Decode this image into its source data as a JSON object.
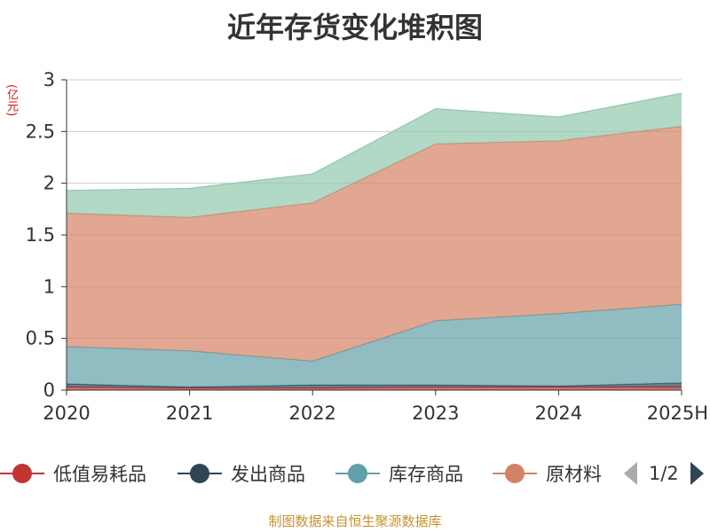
{
  "title": "近年存货变化堆积图",
  "y_unit": "(亿元)",
  "source_note": "制图数据来自恒生聚源数据库",
  "legend": {
    "page": "1/2",
    "items": [
      {
        "label": "低值易耗品",
        "color": "#c23531"
      },
      {
        "label": "发出商品",
        "color": "#2f4554"
      },
      {
        "label": "库存商品",
        "color": "#61a0a8"
      },
      {
        "label": "原材料",
        "color": "#d48265"
      }
    ]
  },
  "chart_data": {
    "type": "area",
    "stacked": true,
    "x": [
      "2020",
      "2021",
      "2022",
      "2023",
      "2024",
      "2025H"
    ],
    "ylim": [
      0,
      3
    ],
    "yticks": [
      "0",
      "0.5",
      "1",
      "1.5",
      "2",
      "2.5",
      "3"
    ],
    "grid": "horizontal",
    "legend_position": "bottom",
    "series": [
      {
        "name": "低值易耗品",
        "color": "#c23531",
        "values": [
          0.03,
          0.02,
          0.02,
          0.03,
          0.03,
          0.03
        ]
      },
      {
        "name": "发出商品",
        "color": "#2f4554",
        "values": [
          0.03,
          0.01,
          0.03,
          0.02,
          0.01,
          0.04
        ]
      },
      {
        "name": "库存商品",
        "color": "#61a0a8",
        "values": [
          0.36,
          0.35,
          0.23,
          0.62,
          0.7,
          0.76
        ]
      },
      {
        "name": "原材料",
        "color": "#d48265",
        "values": [
          1.29,
          1.29,
          1.53,
          1.71,
          1.67,
          1.72
        ]
      },
      {
        "name": "",
        "color": "#91c7ae",
        "values": [
          0.22,
          0.28,
          0.28,
          0.34,
          0.23,
          0.32
        ]
      }
    ]
  }
}
